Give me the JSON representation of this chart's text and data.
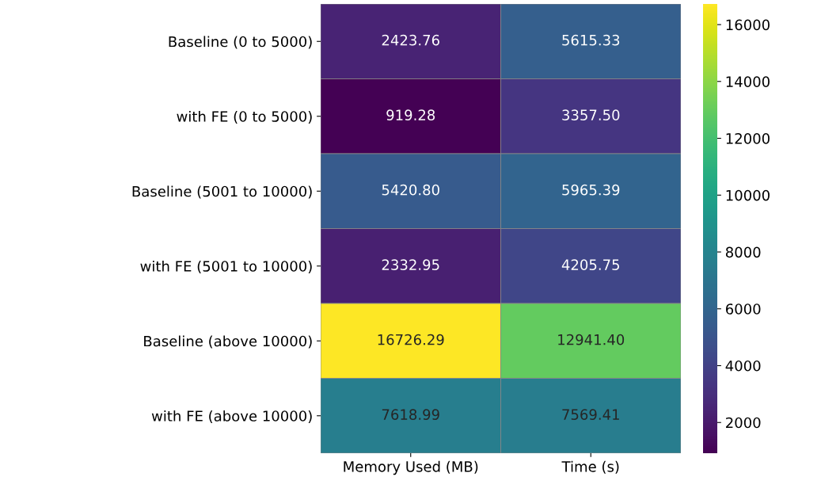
{
  "chart_data": {
    "type": "heatmap",
    "categories": [
      "Memory Used (MB)",
      "Time (s)"
    ],
    "y_categories": [
      "Baseline (0 to 5000)",
      "with FE (0 to 5000)",
      "Baseline (5001 to 10000)",
      "with FE (5001 to 10000)",
      "Baseline (above 10000)",
      "with FE (above 10000)"
    ],
    "cells": [
      [
        2423.76,
        5615.33
      ],
      [
        919.28,
        3357.5
      ],
      [
        5420.8,
        5965.39
      ],
      [
        2332.95,
        4205.75
      ],
      [
        16726.29,
        12941.4
      ],
      [
        7618.99,
        7569.41
      ]
    ],
    "cell_labels": [
      [
        "2423.76",
        "5615.33"
      ],
      [
        "919.28",
        "3357.50"
      ],
      [
        "5420.80",
        "5965.39"
      ],
      [
        "2332.95",
        "4205.75"
      ],
      [
        "16726.29",
        "12941.40"
      ],
      [
        "7618.99",
        "7569.41"
      ]
    ],
    "clim": [
      919.28,
      16726.29
    ],
    "cticks": [
      2000,
      4000,
      6000,
      8000,
      10000,
      12000,
      14000,
      16000
    ]
  }
}
